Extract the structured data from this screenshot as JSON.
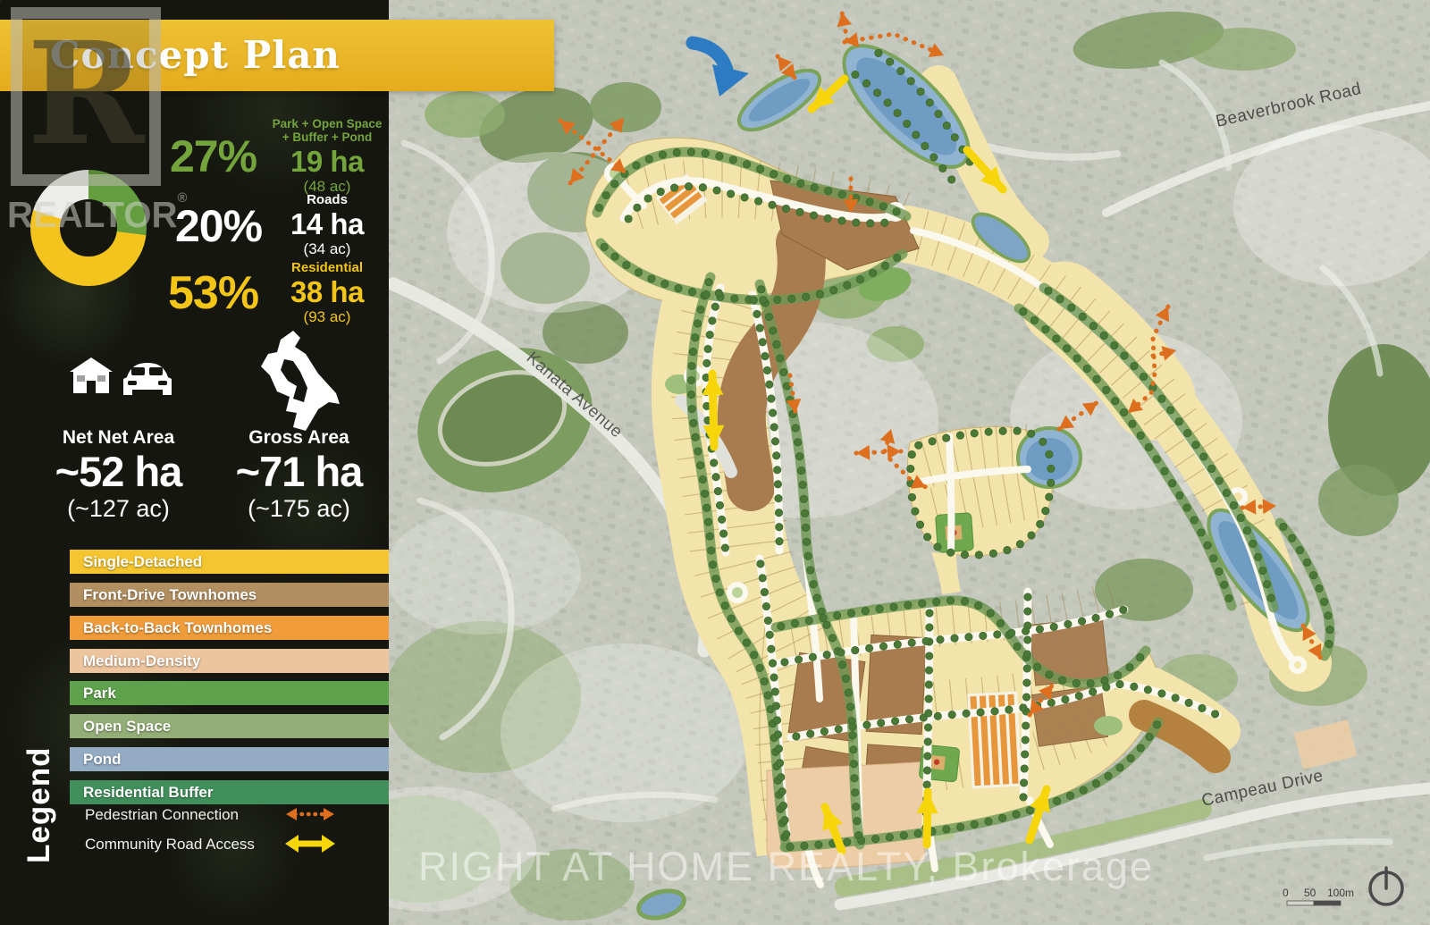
{
  "banner": {
    "title": "Concept Plan"
  },
  "logo": {
    "letter": "R",
    "name": "REALTOR",
    "reg": "®"
  },
  "stats": [
    {
      "pct": "27%",
      "color": "#74a53c",
      "label_line1": "Park + Open Space",
      "label_line2": "+ Buffer + Pond",
      "value": "19 ha",
      "acres": "(48 ac)"
    },
    {
      "pct": "20%",
      "color": "#ffffff",
      "label_line1": "Roads",
      "label_line2": "",
      "value": "14 ha",
      "acres": "(34 ac)"
    },
    {
      "pct": "53%",
      "color": "#f2c517",
      "label_line1": "Residential",
      "label_line2": "",
      "value": "38 ha",
      "acres": "(93 ac)"
    }
  ],
  "donut": {
    "start_angle_deg": 0,
    "segments": [
      {
        "label": "Park + Open Space + Buffer + Pond",
        "pct": 27,
        "color": "#639d3e"
      },
      {
        "label": "Residential",
        "pct": 53,
        "color": "#f2c41d"
      },
      {
        "label": "Roads",
        "pct": 20,
        "color": "#ececea"
      }
    ]
  },
  "areas": [
    {
      "label": "Net Net Area",
      "value": "~52 ha",
      "acres": "(~127 ac)"
    },
    {
      "label": "Gross Area",
      "value": "~71 ha",
      "acres": "(~175 ac)"
    }
  ],
  "legend": {
    "title": "Legend",
    "items": [
      {
        "label": "Single-Detached",
        "color": "#f4c52e"
      },
      {
        "label": "Front-Drive Townhomes",
        "color": "#b18f60"
      },
      {
        "label": "Back-to-Back Townhomes",
        "color": "#f09c3a"
      },
      {
        "label": "Medium-Density",
        "color": "#ecc49e"
      },
      {
        "label": "Park",
        "color": "#5ea24c"
      },
      {
        "label": "Open Space",
        "color": "#93ae76"
      },
      {
        "label": "Pond",
        "color": "#93abc3"
      },
      {
        "label": "Residential Buffer",
        "color": "#41905c"
      }
    ],
    "connections": [
      {
        "label": "Pedestrian Connection",
        "style": "orange-dashed"
      },
      {
        "label": "Community Road Access",
        "style": "yellow-solid"
      }
    ]
  },
  "map": {
    "road_labels": [
      {
        "name": "Beaverbrook Road"
      },
      {
        "name": "Kanata Avenue"
      },
      {
        "name": "Campeau Drive"
      }
    ],
    "watermark": "RIGHT AT HOME REALTY, Brokerage",
    "scale": {
      "ticks": [
        "0",
        "50",
        "100m"
      ]
    },
    "annotation_colors": {
      "pedestrian": "#dd6f1e",
      "road_access": "#f6d60a",
      "highlight_arrow": "#2d7bc2"
    },
    "plan_colors": {
      "single_detached": "#f2e4ab",
      "front_drive": "#a87c4e",
      "back_to_back": "#e8963c",
      "medium_density": "#eccda5",
      "park": "#6fa84f",
      "open_space": "#b7cb90",
      "pond": "#7fa5c6",
      "buffer": "#6d9754",
      "tree": "#4a7836"
    }
  },
  "theme": {
    "banner": "#e9b21e",
    "sidebar_bg": "#15170f"
  }
}
